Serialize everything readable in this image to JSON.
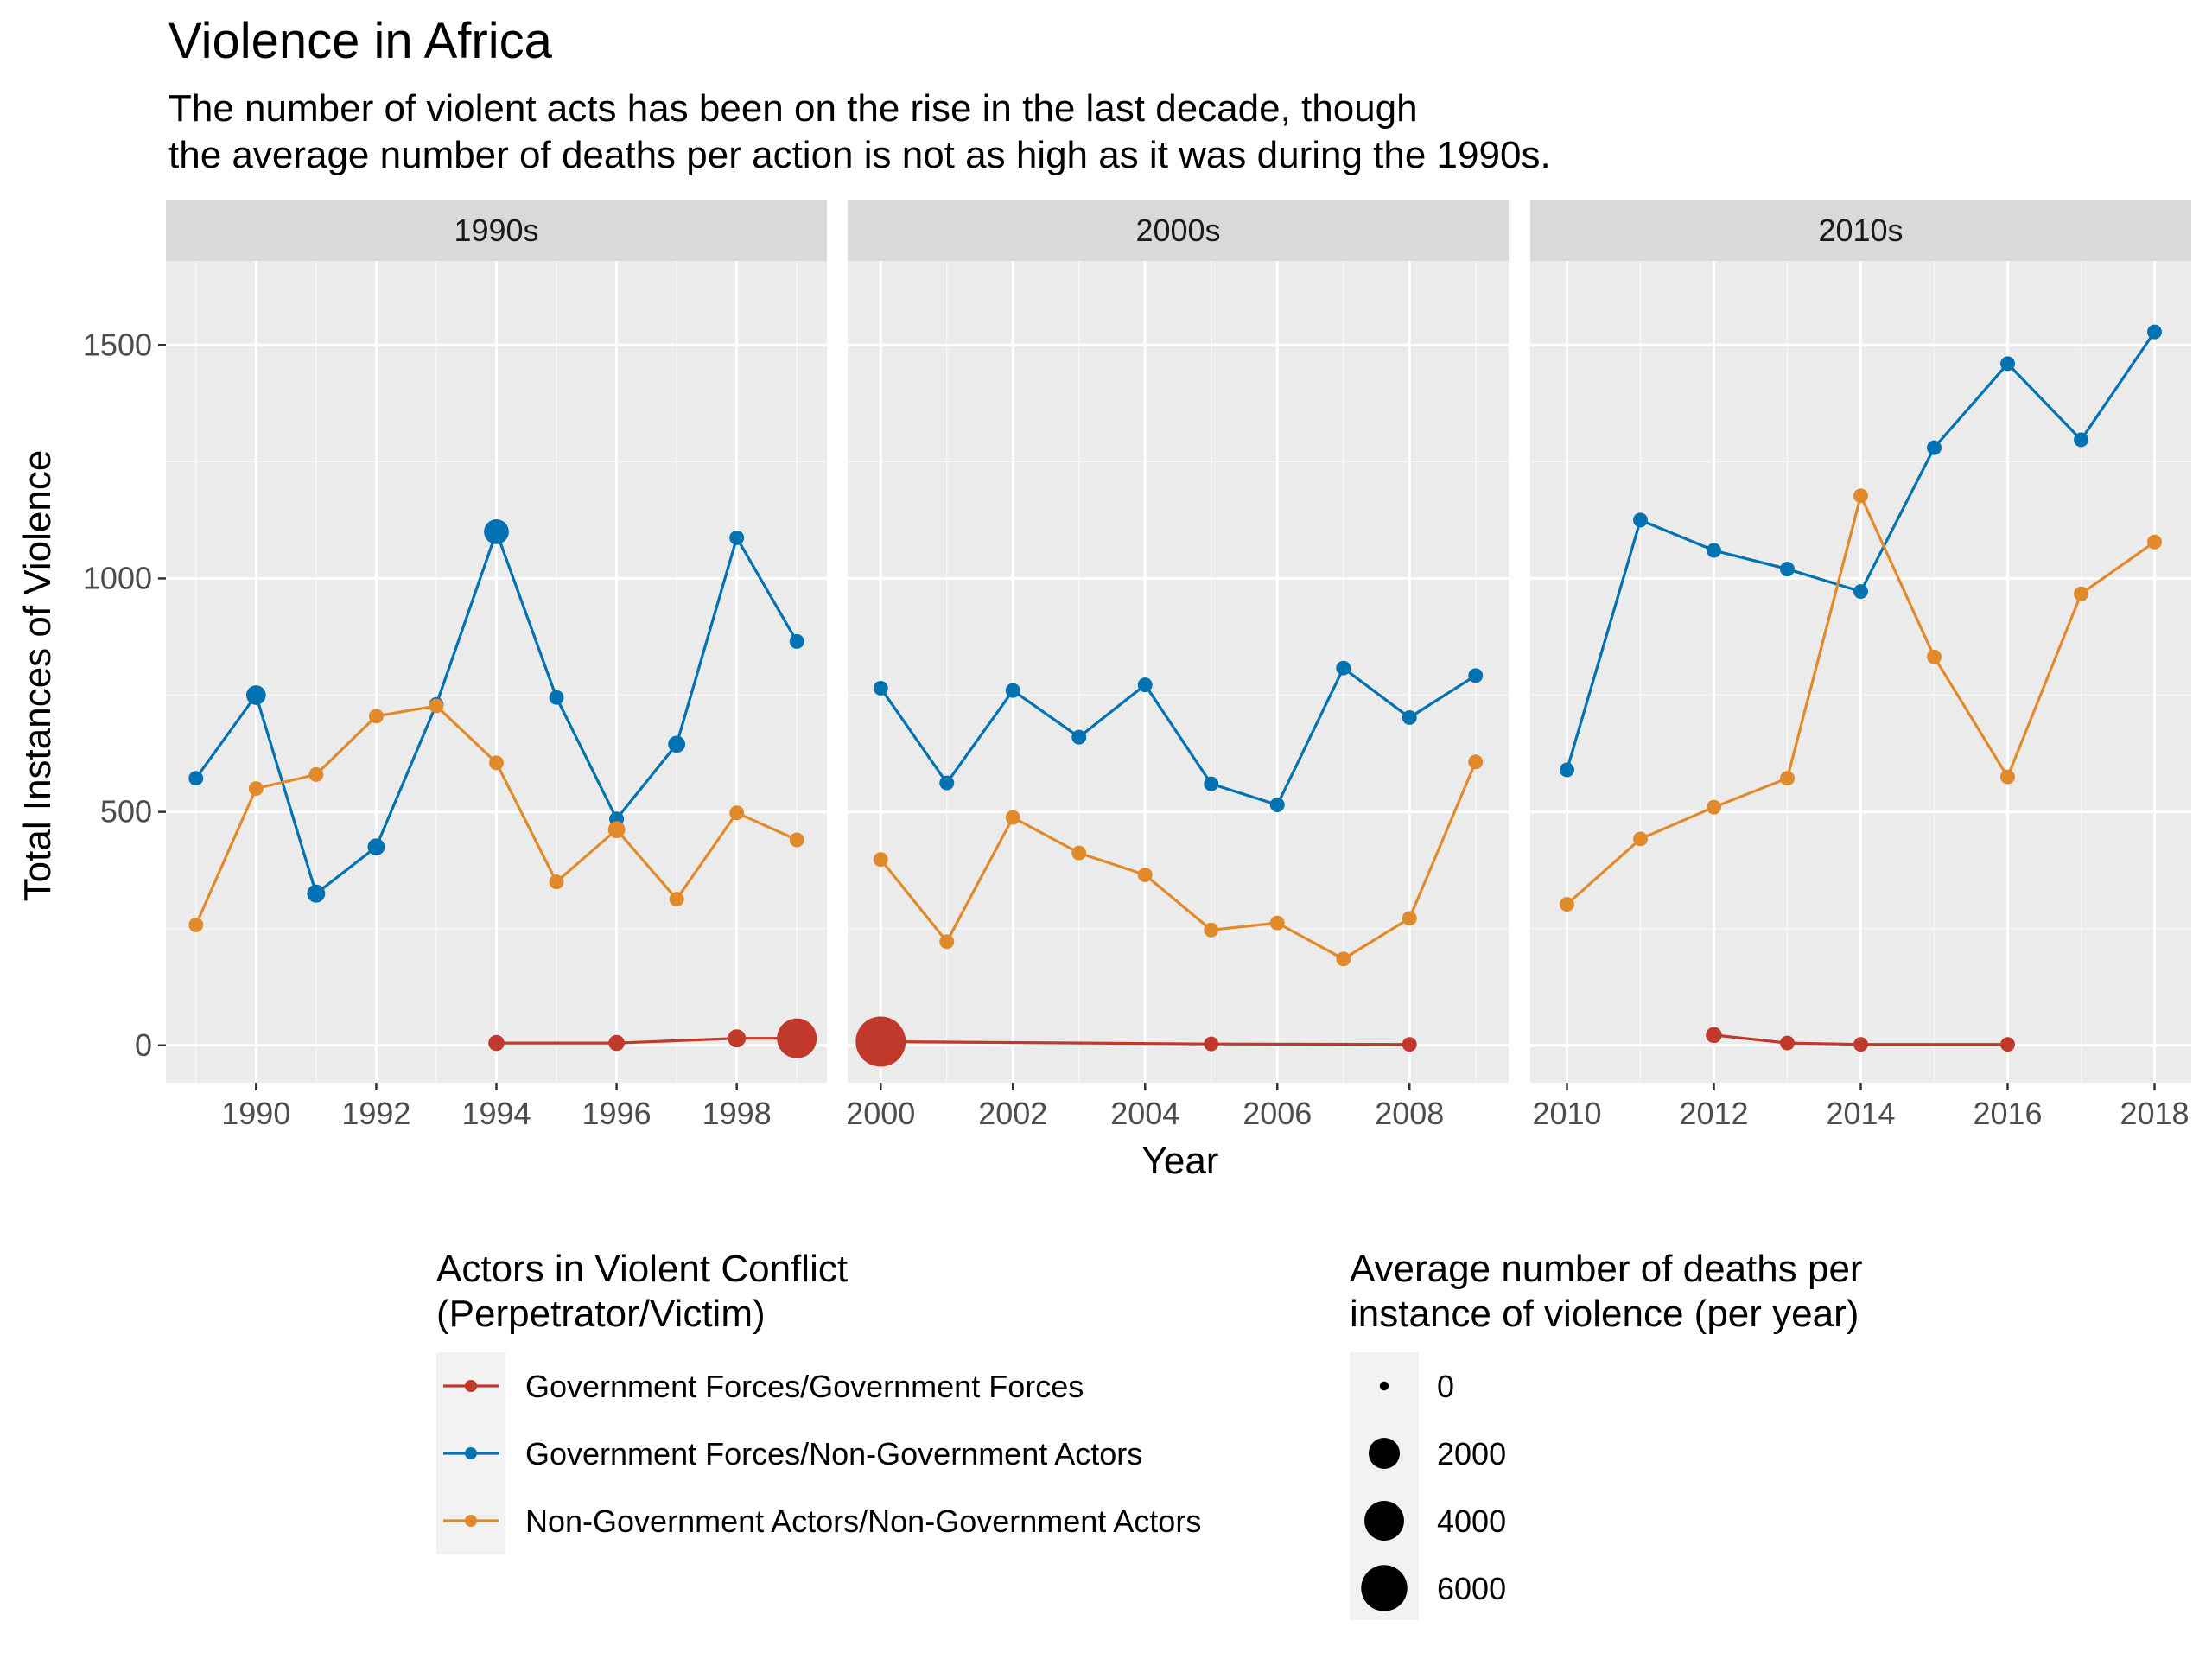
{
  "chart_data": {
    "type": "line",
    "title": "Violence in Africa",
    "subtitle_lines": [
      "The number of violent acts has been on the rise in the last decade, though",
      "the average number of deaths per action is not as high as it was during the 1990s."
    ],
    "xlabel": "Year",
    "ylabel": "Total Instances of Violence",
    "ylim": [
      -80,
      1680
    ],
    "yticks": [
      0,
      500,
      1000,
      1500
    ],
    "grid": true,
    "facets": [
      {
        "label": "1990s",
        "xlim": [
          1988.5,
          1999.5
        ],
        "xticks": [
          1990,
          1992,
          1994,
          1996,
          1998
        ]
      },
      {
        "label": "2000s",
        "xlim": [
          1999.5,
          2009.5
        ],
        "xticks": [
          2000,
          2002,
          2004,
          2006,
          2008
        ]
      },
      {
        "label": "2010s",
        "xlim": [
          2009.5,
          2018.5
        ],
        "xticks": [
          2010,
          2012,
          2014,
          2016,
          2018
        ]
      }
    ],
    "series": [
      {
        "name": "Government Forces/Government Forces",
        "color": "#c0392b",
        "points": [
          {
            "x": 1994,
            "y": 5,
            "deaths": 100
          },
          {
            "x": 1996,
            "y": 5,
            "deaths": 100
          },
          {
            "x": 1998,
            "y": 15,
            "deaths": 200
          },
          {
            "x": 1999,
            "y": 15,
            "deaths": 3500
          },
          {
            "x": 2000,
            "y": 8,
            "deaths": 6500
          },
          {
            "x": 2005,
            "y": 3,
            "deaths": 50
          },
          {
            "x": 2008,
            "y": 2,
            "deaths": 50
          },
          {
            "x": 2012,
            "y": 22,
            "deaths": 100
          },
          {
            "x": 2013,
            "y": 5,
            "deaths": 50
          },
          {
            "x": 2014,
            "y": 2,
            "deaths": 50
          },
          {
            "x": 2016,
            "y": 2,
            "deaths": 50
          }
        ]
      },
      {
        "name": "Government Forces/Non-Government Actors",
        "color": "#0072b2",
        "points": [
          {
            "x": 1989,
            "y": 572,
            "deaths": 50
          },
          {
            "x": 1990,
            "y": 750,
            "deaths": 300
          },
          {
            "x": 1991,
            "y": 325,
            "deaths": 200
          },
          {
            "x": 1992,
            "y": 425,
            "deaths": 150
          },
          {
            "x": 1993,
            "y": 730,
            "deaths": 50
          },
          {
            "x": 1994,
            "y": 1100,
            "deaths": 800
          },
          {
            "x": 1995,
            "y": 745,
            "deaths": 50
          },
          {
            "x": 1996,
            "y": 485,
            "deaths": 50
          },
          {
            "x": 1997,
            "y": 645,
            "deaths": 150
          },
          {
            "x": 1998,
            "y": 1087,
            "deaths": 50
          },
          {
            "x": 1999,
            "y": 865,
            "deaths": 50
          },
          {
            "x": 2000,
            "y": 765,
            "deaths": 50
          },
          {
            "x": 2001,
            "y": 562,
            "deaths": 50
          },
          {
            "x": 2002,
            "y": 760,
            "deaths": 50
          },
          {
            "x": 2003,
            "y": 660,
            "deaths": 50
          },
          {
            "x": 2004,
            "y": 772,
            "deaths": 50
          },
          {
            "x": 2005,
            "y": 560,
            "deaths": 50
          },
          {
            "x": 2006,
            "y": 515,
            "deaths": 50
          },
          {
            "x": 2007,
            "y": 808,
            "deaths": 50
          },
          {
            "x": 2008,
            "y": 702,
            "deaths": 50
          },
          {
            "x": 2009,
            "y": 792,
            "deaths": 50
          },
          {
            "x": 2010,
            "y": 590,
            "deaths": 50
          },
          {
            "x": 2011,
            "y": 1125,
            "deaths": 50
          },
          {
            "x": 2012,
            "y": 1060,
            "deaths": 50
          },
          {
            "x": 2013,
            "y": 1020,
            "deaths": 50
          },
          {
            "x": 2014,
            "y": 972,
            "deaths": 50
          },
          {
            "x": 2015,
            "y": 1280,
            "deaths": 50
          },
          {
            "x": 2016,
            "y": 1460,
            "deaths": 50
          },
          {
            "x": 2017,
            "y": 1297,
            "deaths": 50
          },
          {
            "x": 2018,
            "y": 1528,
            "deaths": 50
          }
        ]
      },
      {
        "name": "Non-Government Actors/Non-Government Actors",
        "color": "#e08a2b",
        "points": [
          {
            "x": 1989,
            "y": 258,
            "deaths": 50
          },
          {
            "x": 1990,
            "y": 550,
            "deaths": 50
          },
          {
            "x": 1991,
            "y": 580,
            "deaths": 50
          },
          {
            "x": 1992,
            "y": 705,
            "deaths": 50
          },
          {
            "x": 1993,
            "y": 727,
            "deaths": 50
          },
          {
            "x": 1994,
            "y": 605,
            "deaths": 50
          },
          {
            "x": 1995,
            "y": 350,
            "deaths": 50
          },
          {
            "x": 1996,
            "y": 462,
            "deaths": 150
          },
          {
            "x": 1997,
            "y": 313,
            "deaths": 50
          },
          {
            "x": 1998,
            "y": 498,
            "deaths": 50
          },
          {
            "x": 1999,
            "y": 440,
            "deaths": 50
          },
          {
            "x": 2000,
            "y": 398,
            "deaths": 50
          },
          {
            "x": 2001,
            "y": 222,
            "deaths": 50
          },
          {
            "x": 2002,
            "y": 488,
            "deaths": 50
          },
          {
            "x": 2003,
            "y": 412,
            "deaths": 50
          },
          {
            "x": 2004,
            "y": 365,
            "deaths": 50
          },
          {
            "x": 2005,
            "y": 247,
            "deaths": 50
          },
          {
            "x": 2006,
            "y": 262,
            "deaths": 50
          },
          {
            "x": 2007,
            "y": 185,
            "deaths": 50
          },
          {
            "x": 2008,
            "y": 272,
            "deaths": 50
          },
          {
            "x": 2009,
            "y": 607,
            "deaths": 50
          },
          {
            "x": 2010,
            "y": 302,
            "deaths": 50
          },
          {
            "x": 2011,
            "y": 442,
            "deaths": 50
          },
          {
            "x": 2012,
            "y": 510,
            "deaths": 50
          },
          {
            "x": 2013,
            "y": 572,
            "deaths": 50
          },
          {
            "x": 2014,
            "y": 1177,
            "deaths": 50
          },
          {
            "x": 2015,
            "y": 832,
            "deaths": 50
          },
          {
            "x": 2016,
            "y": 575,
            "deaths": 50
          },
          {
            "x": 2017,
            "y": 967,
            "deaths": 50
          },
          {
            "x": 2018,
            "y": 1078,
            "deaths": 50
          }
        ]
      }
    ],
    "legend_color": {
      "title_lines": [
        "Actors in Violent Conflict",
        "(Perpetrator/Victim)"
      ],
      "entries": [
        {
          "label": "Government Forces/Government Forces",
          "color": "#c0392b"
        },
        {
          "label": "Government Forces/Non-Government Actors",
          "color": "#0072b2"
        },
        {
          "label": "Non-Government Actors/Non-Government Actors",
          "color": "#e08a2b"
        }
      ]
    },
    "legend_size": {
      "title_lines": [
        "Average number of deaths per",
        "instance of violence (per year)"
      ],
      "entries": [
        {
          "label": "0",
          "value": 0
        },
        {
          "label": "2000",
          "value": 2000
        },
        {
          "label": "4000",
          "value": 4000
        },
        {
          "label": "6000",
          "value": 6000
        }
      ]
    },
    "legend_placement": "bottom"
  }
}
